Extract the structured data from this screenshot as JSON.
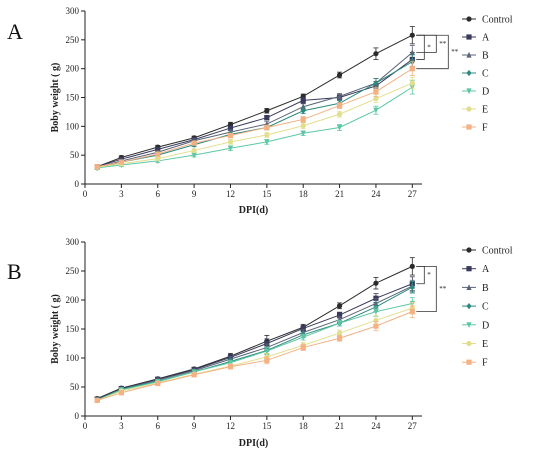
{
  "chart_data": [
    {
      "type": "line",
      "panel_label": "A",
      "xlabel": "DPI(d)",
      "ylabel": "Boby weight ( g)",
      "x": [
        1,
        3,
        6,
        9,
        12,
        15,
        18,
        21,
        24,
        27
      ],
      "xticks": [
        0,
        3,
        6,
        9,
        12,
        15,
        18,
        21,
        24,
        27
      ],
      "yticks": [
        0,
        50,
        100,
        150,
        200,
        250,
        300
      ],
      "xlim": [
        0,
        27.8
      ],
      "ylim": [
        0,
        300
      ],
      "legend_position": "right",
      "significance_markers": [
        "*",
        "**",
        "**"
      ],
      "series": [
        {
          "name": "Control",
          "color": "#2b2b2b",
          "marker": "circle",
          "values": [
            30,
            46,
            64,
            80,
            103,
            127,
            152,
            189,
            226,
            258
          ],
          "errors": [
            3,
            3,
            3,
            3,
            4,
            4,
            4,
            5,
            10,
            15
          ]
        },
        {
          "name": "A",
          "color": "#3a3a5c",
          "marker": "square",
          "values": [
            30,
            43,
            60,
            77,
            97,
            115,
            145,
            150,
            170,
            216
          ],
          "errors": [
            3,
            3,
            3,
            3,
            4,
            4,
            5,
            5,
            8,
            12
          ]
        },
        {
          "name": "B",
          "color": "#5a6478",
          "marker": "triangle",
          "values": [
            29,
            40,
            55,
            75,
            90,
            104,
            134,
            152,
            175,
            228
          ],
          "errors": [
            3,
            3,
            3,
            3,
            4,
            4,
            5,
            5,
            8,
            12
          ]
        },
        {
          "name": "C",
          "color": "#2c8a7e",
          "marker": "diamond",
          "values": [
            28,
            38,
            50,
            68,
            86,
            98,
            127,
            140,
            175,
            212
          ],
          "errors": [
            3,
            3,
            3,
            3,
            4,
            4,
            5,
            5,
            8,
            12
          ]
        },
        {
          "name": "D",
          "color": "#5cc7a4",
          "marker": "triangle-down",
          "values": [
            28,
            33,
            40,
            50,
            62,
            73,
            88,
            98,
            128,
            168
          ],
          "errors": [
            3,
            3,
            3,
            3,
            4,
            4,
            4,
            5,
            7,
            12
          ]
        },
        {
          "name": "E",
          "color": "#e2de8e",
          "marker": "circle",
          "values": [
            29,
            35,
            44,
            58,
            73,
            85,
            101,
            121,
            148,
            175
          ],
          "errors": [
            3,
            3,
            3,
            3,
            4,
            4,
            5,
            5,
            7,
            10
          ]
        },
        {
          "name": "F",
          "color": "#f4b183",
          "marker": "square",
          "values": [
            30,
            38,
            52,
            71,
            84,
            98,
            112,
            136,
            160,
            200
          ],
          "errors": [
            3,
            3,
            3,
            3,
            4,
            4,
            5,
            5,
            8,
            12
          ]
        }
      ]
    },
    {
      "type": "line",
      "panel_label": "B",
      "xlabel": "DPI(d)",
      "ylabel": "Boby weight ( g)",
      "x": [
        1,
        3,
        6,
        9,
        12,
        15,
        18,
        21,
        24,
        27
      ],
      "xticks": [
        0,
        3,
        6,
        9,
        12,
        15,
        18,
        21,
        24,
        27
      ],
      "yticks": [
        0,
        50,
        100,
        150,
        200,
        250,
        300
      ],
      "xlim": [
        0,
        27.8
      ],
      "ylim": [
        0,
        300
      ],
      "legend_position": "right",
      "significance_markers": [
        "*",
        "**"
      ],
      "series": [
        {
          "name": "Control",
          "color": "#2b2b2b",
          "marker": "circle",
          "values": [
            30,
            48,
            64,
            81,
            103,
            129,
            153,
            190,
            229,
            258
          ],
          "errors": [
            3,
            3,
            3,
            3,
            5,
            10,
            5,
            5,
            10,
            15
          ]
        },
        {
          "name": "A",
          "color": "#3a3a5c",
          "marker": "square",
          "values": [
            29,
            47,
            63,
            80,
            101,
            125,
            151,
            174,
            203,
            228
          ],
          "errors": [
            3,
            3,
            3,
            3,
            5,
            8,
            5,
            5,
            8,
            12
          ]
        },
        {
          "name": "B",
          "color": "#5a6478",
          "marker": "triangle",
          "values": [
            28,
            46,
            62,
            78,
            98,
            118,
            144,
            166,
            194,
            224
          ],
          "errors": [
            3,
            3,
            3,
            3,
            4,
            6,
            5,
            5,
            8,
            10
          ]
        },
        {
          "name": "C",
          "color": "#2c8a7e",
          "marker": "diamond",
          "values": [
            28,
            46,
            60,
            76,
            94,
            113,
            140,
            160,
            188,
            222
          ],
          "errors": [
            3,
            3,
            3,
            3,
            4,
            6,
            5,
            5,
            8,
            10
          ]
        },
        {
          "name": "D",
          "color": "#5cc7a4",
          "marker": "triangle-down",
          "values": [
            27,
            45,
            59,
            76,
            92,
            112,
            136,
            160,
            180,
            194
          ],
          "errors": [
            3,
            3,
            3,
            3,
            4,
            6,
            5,
            5,
            8,
            10
          ]
        },
        {
          "name": "E",
          "color": "#e2de8e",
          "marker": "circle",
          "values": [
            27,
            43,
            57,
            72,
            86,
            102,
            122,
            143,
            165,
            186
          ],
          "errors": [
            3,
            3,
            3,
            3,
            4,
            6,
            5,
            5,
            8,
            10
          ]
        },
        {
          "name": "F",
          "color": "#f4b183",
          "marker": "square",
          "values": [
            27,
            40,
            56,
            71,
            85,
            96,
            118,
            134,
            155,
            180
          ],
          "errors": [
            3,
            3,
            3,
            3,
            4,
            6,
            5,
            5,
            8,
            10
          ]
        }
      ]
    }
  ]
}
